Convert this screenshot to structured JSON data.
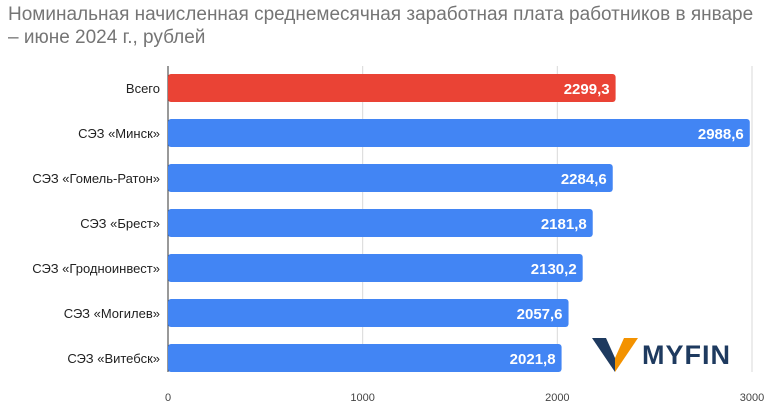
{
  "chart_data": {
    "type": "bar",
    "orientation": "horizontal",
    "title": "Номинальная начисленная среднемесячная заработная плата работников в январе – июне 2024 г., рублей",
    "categories": [
      "Всего",
      "СЭЗ «Минск»",
      "СЭЗ «Гомель-Ратон»",
      "СЭЗ «Брест»",
      "СЭЗ «Гродноинвест»",
      "СЭЗ «Могилев»",
      "СЭЗ «Витебск»"
    ],
    "values": [
      2299.3,
      2988.6,
      2284.6,
      2181.8,
      2130.2,
      2057.6,
      2021.8
    ],
    "value_labels": [
      "2299,3",
      "2988,6",
      "2284,6",
      "2181,8",
      "2130,2",
      "2057,6",
      "2021,8"
    ],
    "bar_colors": [
      "#ea4335",
      "#4285f4",
      "#4285f4",
      "#4285f4",
      "#4285f4",
      "#4285f4",
      "#4285f4"
    ],
    "xlim": [
      0,
      3000
    ],
    "xticks": [
      0,
      1000,
      2000,
      3000
    ],
    "xtick_labels": [
      "0",
      "1000",
      "2000",
      "3000"
    ],
    "grid": true,
    "legend": "none"
  },
  "brand": {
    "logo_text": "MYFIN",
    "logo_colors": {
      "orange": "#f39200",
      "navy": "#1e3a5f"
    }
  }
}
